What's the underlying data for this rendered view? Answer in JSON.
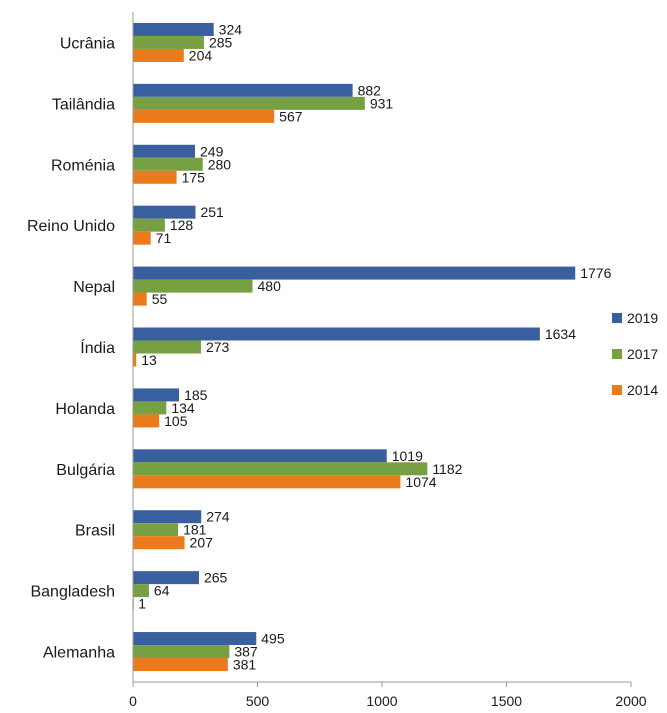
{
  "chart_data": {
    "type": "bar",
    "orientation": "horizontal",
    "title": "",
    "xlabel": "",
    "ylabel": "",
    "xlim": [
      0,
      2000
    ],
    "xticks": [
      0,
      500,
      1000,
      1500,
      2000
    ],
    "grid": false,
    "legend_position": "right",
    "categories": [
      "Ucrânia",
      "Tailândia",
      "Roménia",
      "Reino Unido",
      "Nepal",
      "Índia",
      "Holanda",
      "Bulgária",
      "Brasil",
      "Bangladesh",
      "Alemanha"
    ],
    "series": [
      {
        "name": "2019",
        "color": "#3a5f9e",
        "values": [
          324,
          882,
          249,
          251,
          1776,
          1634,
          185,
          1019,
          274,
          265,
          495
        ]
      },
      {
        "name": "2017",
        "color": "#77a043",
        "values": [
          285,
          931,
          280,
          128,
          480,
          273,
          134,
          1182,
          181,
          64,
          387
        ]
      },
      {
        "name": "2014",
        "color": "#ea7b1d",
        "values": [
          204,
          567,
          175,
          71,
          55,
          13,
          105,
          1074,
          207,
          1,
          381
        ]
      }
    ]
  }
}
